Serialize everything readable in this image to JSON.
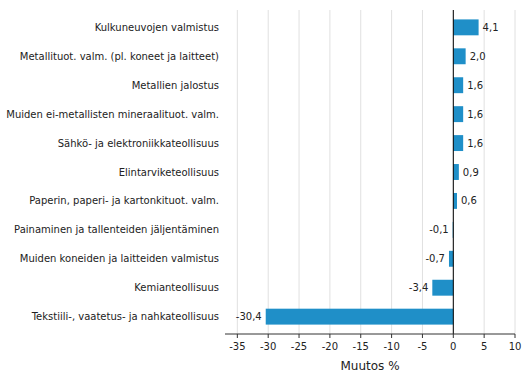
{
  "chart_data": {
    "type": "bar",
    "orientation": "horizontal",
    "categories": [
      "Tekstiili-, vaatetus- ja nahkateollisuus",
      "Kemianteollisuus",
      "Muiden koneiden ja laitteiden valmistus",
      "Painaminen ja tallenteiden jäljentäminen",
      "Paperin, paperi- ja kartonkituot. valm.",
      "Elintarviketeollisuus",
      "Sähkö- ja elektroniikkateollisuus",
      "Muiden ei-metallisten mineraalituot. valm.",
      "Metallien jalostus",
      "Metallituot. valm. (pl. koneet ja laitteet)",
      "Kulkuneuvojen valmistus"
    ],
    "values": [
      -30.4,
      -3.4,
      -0.7,
      -0.1,
      0.6,
      0.9,
      1.6,
      1.6,
      1.6,
      2.0,
      4.1
    ],
    "value_labels": [
      "-30,4",
      "-3,4",
      "-0,7",
      "-0,1",
      "0,6",
      "0,9",
      "1,6",
      "1,6",
      "1,6",
      "2,0",
      "4,1"
    ],
    "data_labels": true,
    "color": "#1f8fc8",
    "xlabel": "Muutos %",
    "xlim": [
      -37,
      10
    ],
    "xticks": [
      -35,
      -30,
      -25,
      -20,
      -15,
      -10,
      -5,
      0,
      5,
      10
    ],
    "grid": true
  }
}
